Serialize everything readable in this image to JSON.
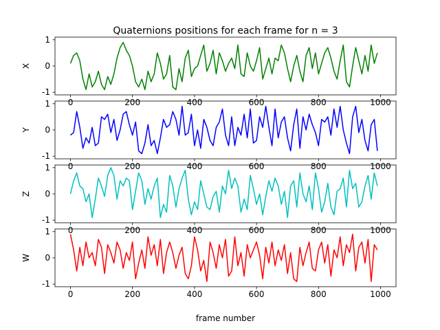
{
  "figure": {
    "title": "Quaternions positions for each frame for n = 3",
    "xlabel": "frame number"
  },
  "chart_data": {
    "type": "line",
    "title": "Quaternions positions for each frame for n = 3",
    "xlabel": "frame number",
    "x_step": 10,
    "x_ticks": [
      0,
      200,
      400,
      600,
      800,
      1000
    ],
    "y_ticks": [
      -1,
      0,
      1
    ],
    "xlim": [
      -50,
      1050
    ],
    "ylim": [
      -1.1,
      1.1
    ],
    "series": [
      {
        "name": "X",
        "ylabel": "X",
        "color": "#008000",
        "x_start": 0,
        "values": [
          0.1,
          0.4,
          0.5,
          0.2,
          -0.5,
          -0.9,
          -0.3,
          -0.8,
          -0.6,
          -0.2,
          -0.7,
          -0.9,
          -0.4,
          -0.7,
          -0.3,
          0.3,
          0.7,
          0.9,
          0.6,
          0.4,
          0.0,
          -0.6,
          -0.8,
          -0.5,
          -0.9,
          -0.2,
          -0.6,
          -0.3,
          0.5,
          0.1,
          -0.5,
          -0.3,
          0.4,
          -0.8,
          -0.9,
          -0.1,
          -0.6,
          0.3,
          0.6,
          -0.4,
          -0.1,
          0.0,
          0.4,
          0.8,
          -0.2,
          0.1,
          0.6,
          -0.3,
          0.5,
          0.2,
          -0.2,
          0.1,
          0.3,
          -0.1,
          0.8,
          -0.3,
          -0.4,
          0.5,
          0.0,
          -0.2,
          0.2,
          0.7,
          -0.5,
          -0.1,
          0.3,
          -0.3,
          0.3,
          0.2,
          0.8,
          0.5,
          -0.1,
          -0.6,
          0.0,
          0.4,
          -0.2,
          -0.6,
          0.4,
          0.7,
          -0.1,
          0.5,
          -0.3,
          0.1,
          0.5,
          0.7,
          0.3,
          -0.2,
          -0.5,
          0.2,
          0.8,
          -0.6,
          -0.8,
          0.0,
          0.7,
          0.2,
          -0.3,
          0.4,
          -0.2,
          0.8,
          0.1,
          0.5
        ]
      },
      {
        "name": "Y",
        "ylabel": "Y",
        "color": "#0000ff",
        "x_start": 0,
        "values": [
          -0.2,
          -0.1,
          0.7,
          0.1,
          -0.7,
          -0.3,
          -0.5,
          0.1,
          -0.6,
          -0.5,
          0.5,
          0.4,
          0.6,
          -0.1,
          0.4,
          -0.4,
          0.0,
          0.6,
          0.7,
          0.2,
          -0.2,
          0.3,
          -0.8,
          -0.9,
          -0.5,
          0.2,
          -0.6,
          -0.4,
          -0.9,
          -0.3,
          0.4,
          0.1,
          0.2,
          0.7,
          0.4,
          -0.2,
          0.9,
          -0.2,
          -0.1,
          0.6,
          -0.6,
          0.0,
          -0.7,
          0.4,
          0.1,
          -0.4,
          -0.6,
          0.1,
          0.3,
          0.8,
          -0.2,
          -0.6,
          0.5,
          -0.6,
          0.1,
          -0.2,
          0.6,
          -0.3,
          0.8,
          -0.5,
          -0.4,
          0.5,
          0.1,
          0.9,
          0.1,
          -0.6,
          0.8,
          -0.3,
          0.3,
          0.5,
          -0.3,
          -0.8,
          0.2,
          0.8,
          -0.7,
          0.5,
          0.0,
          0.6,
          0.2,
          -0.1,
          -0.6,
          0.4,
          0.3,
          0.5,
          -0.2,
          0.8,
          0.1,
          0.9,
          0.0,
          -0.5,
          -0.9,
          0.5,
          0.9,
          -0.1,
          0.4,
          -0.4,
          -0.8,
          0.2,
          0.4,
          -0.8
        ]
      },
      {
        "name": "Z",
        "ylabel": "Z",
        "color": "#00bfbf",
        "x_start": 0,
        "values": [
          0.0,
          0.5,
          0.8,
          0.3,
          0.2,
          -0.3,
          0.0,
          -0.9,
          -0.2,
          0.6,
          0.3,
          -0.1,
          0.7,
          1.0,
          0.7,
          -0.2,
          0.5,
          0.3,
          0.6,
          0.5,
          -0.6,
          0.1,
          0.8,
          0.5,
          -0.4,
          0.2,
          -0.2,
          0.3,
          0.6,
          -0.9,
          -0.4,
          -0.7,
          0.7,
          0.3,
          -0.5,
          0.2,
          0.6,
          0.9,
          -0.2,
          -0.8,
          -0.3,
          -0.6,
          0.5,
          0.0,
          -0.5,
          -0.6,
          -0.1,
          0.1,
          -0.7,
          0.3,
          0.0,
          0.9,
          0.2,
          0.6,
          0.3,
          -0.7,
          -0.2,
          -0.6,
          0.7,
          0.2,
          -0.4,
          0.0,
          -0.8,
          -0.1,
          0.5,
          0.1,
          0.6,
          0.3,
          -0.4,
          0.1,
          -0.9,
          0.3,
          0.5,
          -0.5,
          0.8,
          0.0,
          -0.3,
          0.3,
          -0.6,
          0.8,
          0.2,
          -0.7,
          -0.3,
          0.4,
          -0.5,
          -0.8,
          0.1,
          0.2,
          0.6,
          -0.5,
          0.9,
          0.2,
          0.4,
          -0.5,
          -0.3,
          0.3,
          0.7,
          -0.2,
          0.8,
          0.3
        ]
      },
      {
        "name": "W",
        "ylabel": "W",
        "color": "#ff0000",
        "x_start": 0,
        "values": [
          0.9,
          0.3,
          -0.5,
          0.4,
          -0.3,
          0.6,
          0.0,
          0.2,
          -0.3,
          0.7,
          0.4,
          -0.6,
          0.5,
          0.2,
          -0.2,
          0.6,
          0.3,
          -0.4,
          0.2,
          -0.1,
          0.6,
          -0.8,
          -0.2,
          0.3,
          -0.4,
          0.8,
          0.1,
          0.5,
          -0.3,
          0.7,
          -0.6,
          0.2,
          0.6,
          0.2,
          -0.4,
          0.1,
          0.4,
          -0.6,
          -0.8,
          -0.3,
          0.8,
          0.3,
          -0.5,
          -0.1,
          -0.9,
          0.6,
          0.2,
          -0.4,
          0.5,
          0.0,
          0.7,
          -0.7,
          -0.5,
          0.8,
          -0.3,
          0.2,
          -0.7,
          0.5,
          0.0,
          0.3,
          0.6,
          0.1,
          -0.8,
          0.4,
          -0.2,
          0.6,
          -0.3,
          0.3,
          -0.1,
          0.5,
          -0.6,
          0.2,
          -0.8,
          -0.9,
          0.4,
          -0.3,
          0.2,
          0.6,
          -0.4,
          -0.5,
          0.3,
          0.6,
          -0.2,
          0.5,
          -0.7,
          0.3,
          0.0,
          0.8,
          -0.3,
          0.5,
          0.2,
          0.9,
          -0.5,
          0.4,
          0.6,
          -0.2,
          0.7,
          -0.9,
          0.5,
          0.3
        ]
      }
    ]
  }
}
